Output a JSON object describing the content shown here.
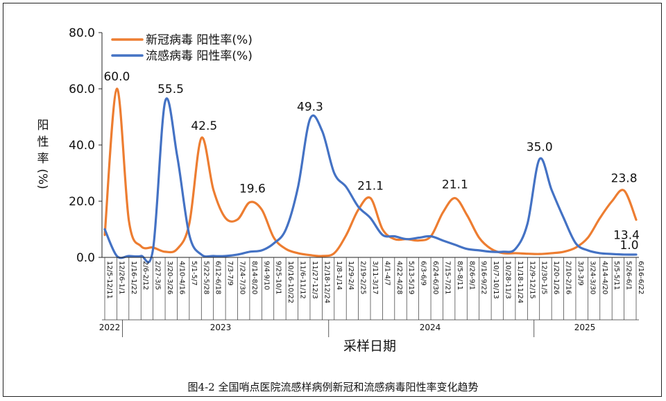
{
  "chart_data": {
    "type": "line",
    "title": "",
    "xlabel": "采样日期",
    "ylabel": [
      "阳",
      "性",
      "率",
      "(%)"
    ],
    "ylim": [
      0,
      80
    ],
    "yticks": [
      "0.0",
      "20.0",
      "40.0",
      "60.0",
      "80.0"
    ],
    "years": [
      "2022",
      "2023",
      "2024",
      "2025"
    ],
    "x": [
      "12/5-12/11",
      "12/26-1/1",
      "1/16-1/22",
      "2/6-2/12",
      "2/27-3/5",
      "3/20-3/26",
      "4/10-4/16",
      "5/1-5/7",
      "5/22-5/28",
      "6/12-6/18",
      "7/3-7/9",
      "7/24-7/30",
      "8/14-8/20",
      "9/4-9/10",
      "9/25-10/1",
      "10/16-10/22",
      "11/6-11/12",
      "11/27-12/3",
      "12/18-12/24",
      "1/8-1/14",
      "1/29-2/4",
      "2/19-2/25",
      "3/11-3/17",
      "4/1-4/7",
      "4/22-4/28",
      "5/13-5/19",
      "6/3-6/9",
      "6/24-6/30",
      "7/15-7/21",
      "8/5-8/11",
      "8/26-9/1",
      "9/16-9/22",
      "10/7-10/13",
      "10/28-11/3",
      "11/18-11/24",
      "12/9-12/15",
      "12/30-1/5",
      "1/20-1/26",
      "2/10-2/16",
      "3/3-3/9",
      "3/24-3/30",
      "4/14-4/20",
      "5/5-5/11",
      "5/26-6/1",
      "6/16-6/22"
    ],
    "legend": "top-left",
    "grid": false,
    "series": [
      {
        "name": "新冠病毒 阳性率(%)",
        "color": "#ED7D31",
        "values": [
          8.0,
          60.0,
          13.0,
          4.0,
          3.5,
          2.0,
          3.0,
          12.0,
          42.5,
          24.0,
          14.0,
          13.5,
          19.6,
          17.0,
          7.0,
          3.0,
          1.5,
          0.8,
          0.5,
          1.5,
          8.0,
          17.0,
          21.1,
          10.0,
          6.5,
          6.5,
          6.0,
          7.5,
          16.0,
          21.1,
          15.0,
          7.0,
          3.0,
          1.5,
          1.5,
          1.3,
          1.2,
          1.5,
          2.0,
          3.5,
          7.0,
          14.0,
          20.0,
          23.8,
          13.4
        ]
      },
      {
        "name": "流感病毒 阳性率(%)",
        "color": "#4472C4",
        "values": [
          10.0,
          0.5,
          0.5,
          0.5,
          3.0,
          55.5,
          36.0,
          8.0,
          1.0,
          0.5,
          0.5,
          1.0,
          2.0,
          2.5,
          5.0,
          10.0,
          25.0,
          49.3,
          45.0,
          30.0,
          25.0,
          18.0,
          14.0,
          8.0,
          7.5,
          6.5,
          7.0,
          7.5,
          6.0,
          4.5,
          3.0,
          2.5,
          2.0,
          2.0,
          3.0,
          12.0,
          35.0,
          24.0,
          14.0,
          5.0,
          2.5,
          1.5,
          1.2,
          1.0,
          1.0
        ]
      }
    ],
    "annotations": [
      {
        "series": 0,
        "index": 1,
        "text": "60.0"
      },
      {
        "series": 1,
        "index": 5,
        "text": "55.5"
      },
      {
        "series": 0,
        "index": 8,
        "text": "42.5"
      },
      {
        "series": 1,
        "index": 17,
        "text": "49.3"
      },
      {
        "series": 0,
        "index": 12,
        "text": "19.6"
      },
      {
        "series": 0,
        "index": 22,
        "text": "21.1"
      },
      {
        "series": 0,
        "index": 29,
        "text": "21.1"
      },
      {
        "series": 1,
        "index": 36,
        "text": "35.0"
      },
      {
        "series": 0,
        "index": 43,
        "text": "23.8"
      },
      {
        "series": 0,
        "index": 44,
        "text": "13.4"
      },
      {
        "series": 1,
        "index": 44,
        "text": "1.0"
      }
    ]
  },
  "caption": "图4-2 全国哨点医院流感样病例新冠和流感病毒阳性率变化趋势"
}
